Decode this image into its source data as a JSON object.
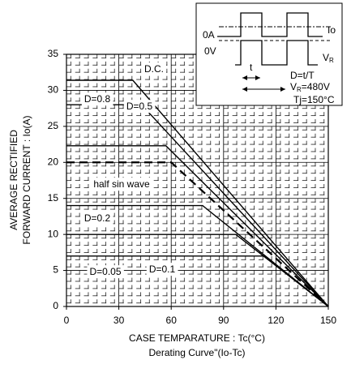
{
  "chart_data": {
    "type": "line",
    "xlabel": "CASE TEMPARATURE : Tc(°C)",
    "subtitle": "Derating Curve\"(Io-Tc)",
    "ylabel": [
      "AVERAGE RECTIFIED",
      "FORWARD CURRENT : Io(A)"
    ],
    "xlim": [
      0,
      150
    ],
    "xticks": [
      0,
      30,
      60,
      90,
      120,
      150
    ],
    "ylim": [
      0,
      35
    ],
    "yticks": [
      0,
      5,
      10,
      15,
      20,
      25,
      30,
      35
    ],
    "grid": true,
    "series": [
      {
        "name": "D.C.",
        "color": "#000000",
        "dash": false,
        "x": [
          0,
          38,
          150
        ],
        "values": [
          31.4,
          31.4,
          0
        ]
      },
      {
        "name": "D=0.8",
        "color": "#000000",
        "dash": false,
        "x": [
          0,
          43,
          150
        ],
        "values": [
          28,
          28,
          0
        ]
      },
      {
        "name": "D=0.5",
        "color": "#000000",
        "dash": false,
        "x": [
          0,
          57,
          150
        ],
        "values": [
          22.3,
          22.3,
          0
        ]
      },
      {
        "name": "half sin wave",
        "color": "#000000",
        "dash": true,
        "x": [
          0,
          60,
          150
        ],
        "values": [
          20,
          20,
          0
        ]
      },
      {
        "name": "D=0.2",
        "color": "#000000",
        "dash": false,
        "x": [
          0,
          78,
          150
        ],
        "values": [
          14,
          14,
          0
        ]
      },
      {
        "name": "D=0.1",
        "color": "#000000",
        "dash": false,
        "x": [
          0,
          97,
          150
        ],
        "values": [
          10,
          10,
          0
        ]
      },
      {
        "name": "D=0.05",
        "color": "#000000",
        "dash": false,
        "x": [
          0,
          113,
          150
        ],
        "values": [
          7,
          7,
          0
        ]
      }
    ],
    "inset": {
      "zero_a": "0A",
      "io": "Io",
      "zero_v": "0V",
      "vr": "V",
      "vr_sub": "R",
      "t": "t",
      "duty": "D=t/T",
      "voltage": "V",
      "voltage_sub": "R",
      "voltage_rest": "=480V",
      "tj": "Tj=150°C"
    }
  }
}
